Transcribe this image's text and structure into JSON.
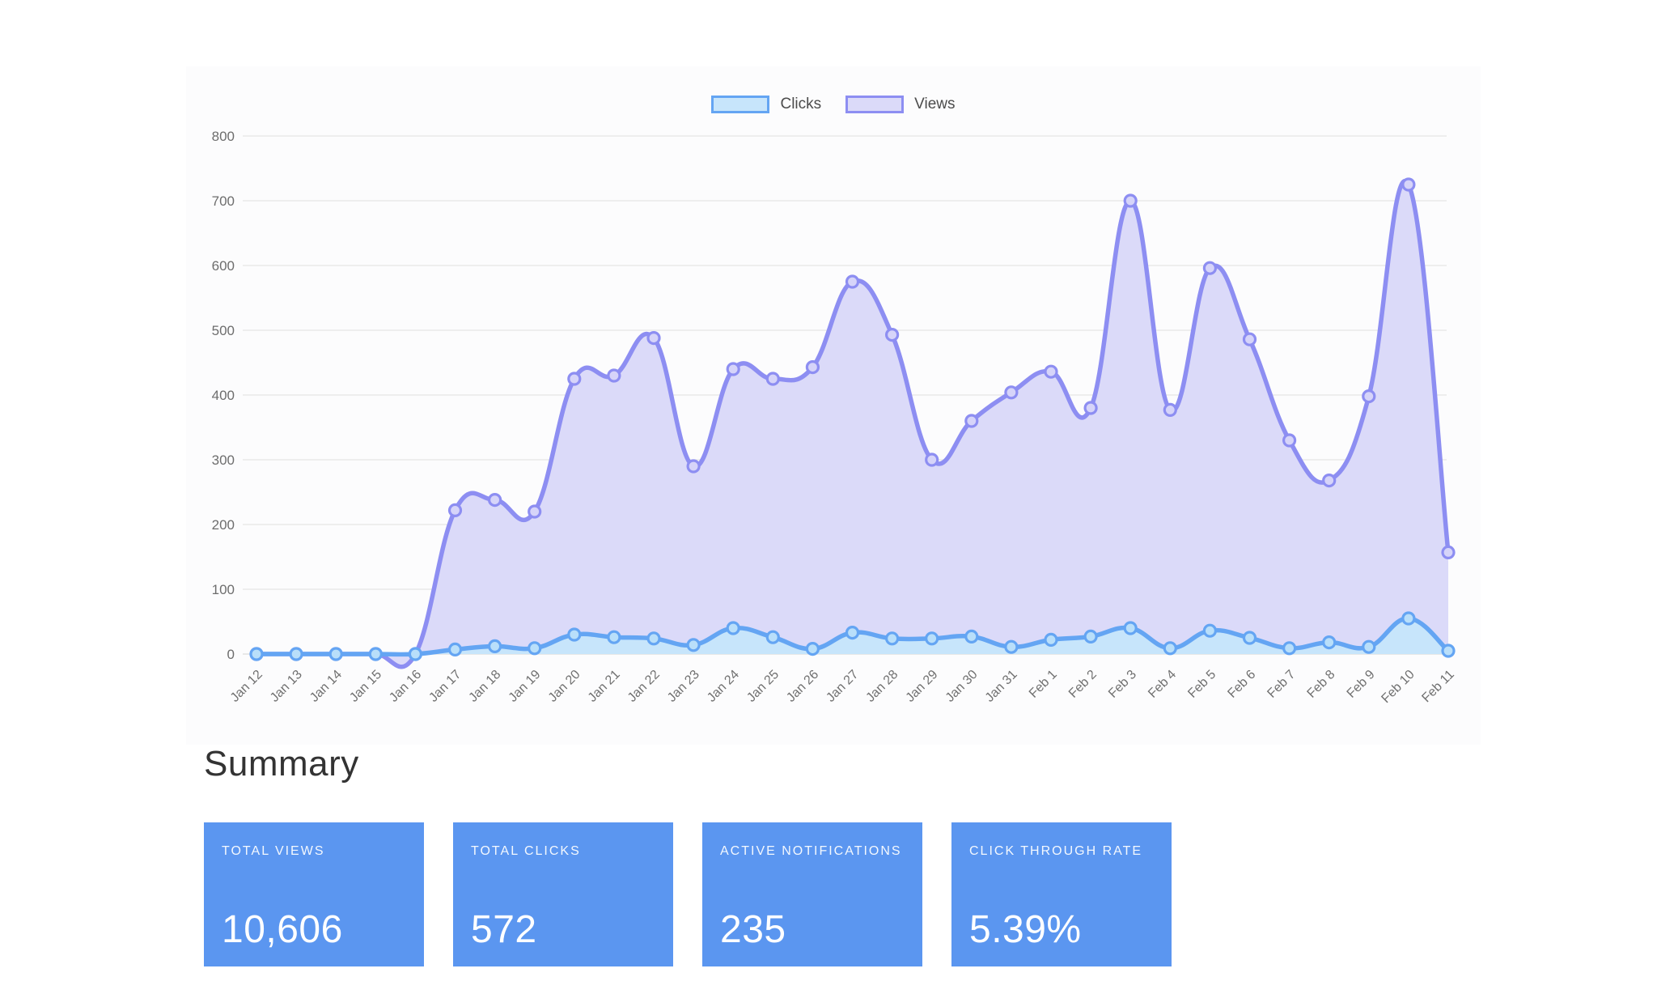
{
  "chart_data": {
    "type": "area",
    "title": "",
    "categories": [
      "Jan 12",
      "Jan 13",
      "Jan 14",
      "Jan 15",
      "Jan 16",
      "Jan 17",
      "Jan 18",
      "Jan 19",
      "Jan 20",
      "Jan 21",
      "Jan 22",
      "Jan 23",
      "Jan 24",
      "Jan 25",
      "Jan 26",
      "Jan 27",
      "Jan 28",
      "Jan 29",
      "Jan 30",
      "Jan 31",
      "Feb 1",
      "Feb 2",
      "Feb 3",
      "Feb 4",
      "Feb 5",
      "Feb 6",
      "Feb 7",
      "Feb 8",
      "Feb 9",
      "Feb 10",
      "Feb 11"
    ],
    "series": [
      {
        "name": "Clicks",
        "values": [
          0,
          0,
          0,
          0,
          0,
          7,
          12,
          9,
          30,
          26,
          24,
          14,
          40,
          26,
          8,
          33,
          24,
          24,
          27,
          11,
          22,
          27,
          40,
          9,
          36,
          25,
          9,
          18,
          11,
          55,
          5
        ],
        "line_color": "#64a5f3",
        "area_fill": "#c7e5fb",
        "marker_fill": "#b9dffa"
      },
      {
        "name": "Views",
        "values": [
          0,
          0,
          0,
          0,
          0,
          222,
          238,
          220,
          425,
          430,
          488,
          290,
          440,
          425,
          443,
          575,
          493,
          300,
          360,
          404,
          436,
          380,
          700,
          377,
          596,
          486,
          330,
          268,
          398,
          725,
          157
        ],
        "line_color": "#8d8ef2",
        "area_fill": "#dbdaf9",
        "marker_fill": "#d6d4f9"
      }
    ],
    "ylim": [
      0,
      800
    ],
    "y_ticks": [
      0,
      100,
      200,
      300,
      400,
      500,
      600,
      700,
      800
    ],
    "grid": "horizontal",
    "grid_color": "#e6e6e6",
    "axis_line_color": "#dcdcdc",
    "legend_position": "top-center",
    "curve": "smooth"
  },
  "summary": {
    "title": "Summary",
    "card_background": "#5b96f0",
    "cards": [
      {
        "label": "TOTAL VIEWS",
        "value": "10,606"
      },
      {
        "label": "TOTAL CLICKS",
        "value": "572"
      },
      {
        "label": "ACTIVE NOTIFICATIONS",
        "value": "235"
      },
      {
        "label": "CLICK THROUGH RATE",
        "value": "5.39%"
      }
    ]
  }
}
